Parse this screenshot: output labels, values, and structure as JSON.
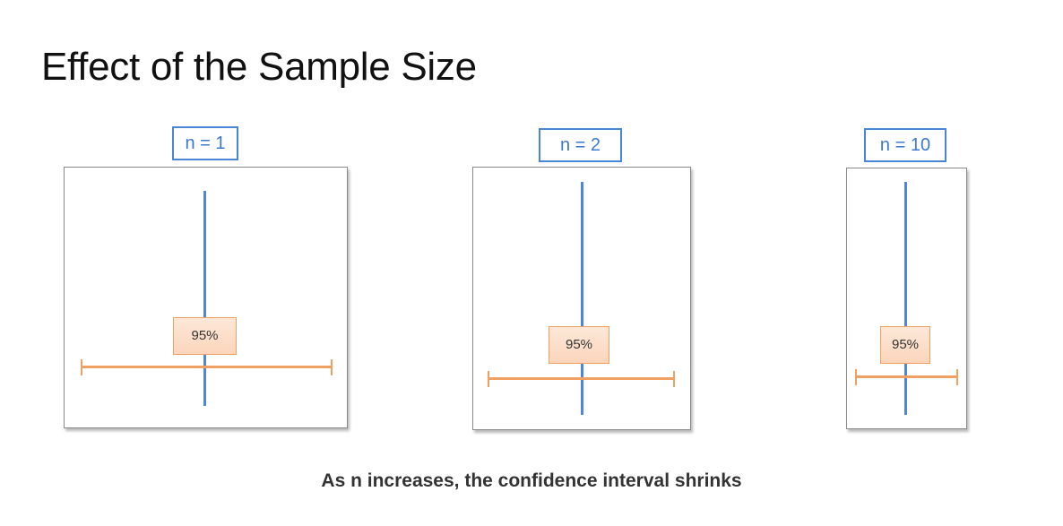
{
  "title": "Effect of the Sample Size",
  "panels": [
    {
      "label": "n = 1",
      "confidence_label": "95%"
    },
    {
      "label": "n = 2",
      "confidence_label": "95%"
    },
    {
      "label": "n = 10",
      "confidence_label": "95%"
    }
  ],
  "caption": "As n increases, the confidence interval shrinks",
  "colors": {
    "label_border": "#4a86d8",
    "vertical_line": "#4f86dd",
    "interval": "#f0a060",
    "confidence_fill": "#fde8d8"
  }
}
